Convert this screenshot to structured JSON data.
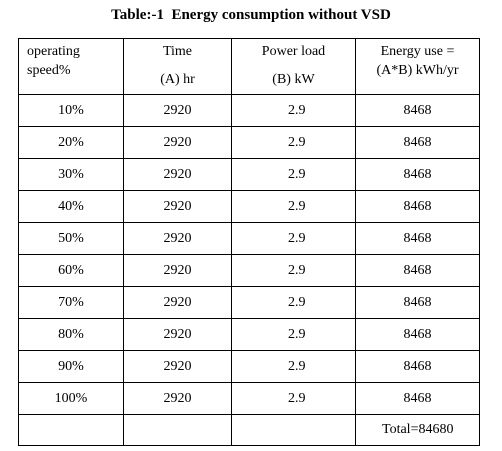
{
  "caption": "Table:-1  Energy consumption without VSD",
  "header": {
    "speed": [
      "operating",
      "speed%"
    ],
    "time": [
      "Time",
      "(A) hr"
    ],
    "power": [
      "Power load",
      "(B) kW"
    ],
    "energy": [
      "Energy use =",
      "(A*B) kWh/yr"
    ]
  },
  "rows": [
    {
      "speed": "10%",
      "time": "2920",
      "power": "2.9",
      "energy": "8468"
    },
    {
      "speed": "20%",
      "time": "2920",
      "power": "2.9",
      "energy": "8468"
    },
    {
      "speed": "30%",
      "time": "2920",
      "power": "2.9",
      "energy": "8468"
    },
    {
      "speed": "40%",
      "time": "2920",
      "power": "2.9",
      "energy": "8468"
    },
    {
      "speed": "50%",
      "time": "2920",
      "power": "2.9",
      "energy": "8468"
    },
    {
      "speed": "60%",
      "time": "2920",
      "power": "2.9",
      "energy": "8468"
    },
    {
      "speed": "70%",
      "time": "2920",
      "power": "2.9",
      "energy": "8468"
    },
    {
      "speed": "80%",
      "time": "2920",
      "power": "2.9",
      "energy": "8468"
    },
    {
      "speed": "90%",
      "time": "2920",
      "power": "2.9",
      "energy": "8468"
    },
    {
      "speed": "100%",
      "time": "2920",
      "power": "2.9",
      "energy": "8468"
    }
  ],
  "total": "Total=84680"
}
